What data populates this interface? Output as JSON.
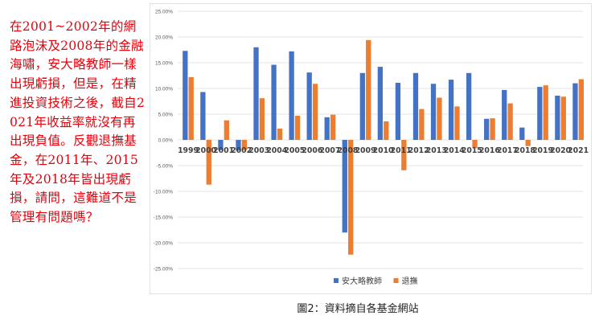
{
  "annotation": {
    "text": "在2001~2002年的網路泡沫及2008年的金融海嘯，安大略教師一樣出現虧損，但是，在精進投資技術之後，截自2021年收益率就沒有再出現負值。反觀退撫基金，在2011年、2015年及2018年皆出現虧損，請問，這難道不是管理有問題嗎？",
    "color": "#e8000b"
  },
  "caption": "圖2：資料摘自各基金網站",
  "chart_data": {
    "type": "bar",
    "title": "",
    "xlabel": "",
    "ylabel": "",
    "categories": [
      "1999",
      "2000",
      "2001",
      "2002",
      "2003",
      "2004",
      "2005",
      "2006",
      "2007",
      "2008",
      "2009",
      "2010",
      "2011",
      "2012",
      "2013",
      "2014",
      "2015",
      "2016",
      "2017",
      "2018",
      "2019",
      "2020",
      "2021"
    ],
    "series": [
      {
        "name": "安大略教師",
        "color": "#4472c4",
        "values": [
          17.3,
          9.3,
          -2.0,
          -2.1,
          18.0,
          14.6,
          17.2,
          13.1,
          4.4,
          -18.0,
          13.0,
          14.2,
          11.1,
          13.0,
          10.9,
          11.7,
          13.0,
          4.1,
          9.7,
          2.4,
          10.3,
          8.6,
          11.0
        ]
      },
      {
        "name": "退撫",
        "color": "#ed7d31",
        "values": [
          12.2,
          -8.7,
          3.8,
          -2.0,
          8.1,
          2.2,
          4.7,
          10.9,
          4.9,
          -22.3,
          19.4,
          3.6,
          -5.9,
          6.0,
          8.2,
          6.5,
          -1.6,
          4.2,
          7.1,
          -1.2,
          10.6,
          8.4,
          11.8
        ]
      }
    ],
    "yticks": [
      "25.00%",
      "20.00%",
      "15.00%",
      "10.00%",
      "5.00%",
      "0.00%",
      "-5.00%",
      "-10.00%",
      "-15.00%",
      "-20.00%",
      "-25.00%"
    ],
    "ylim": [
      -25,
      25
    ],
    "unit": "%",
    "grid": true,
    "legend_position": "bottom"
  }
}
